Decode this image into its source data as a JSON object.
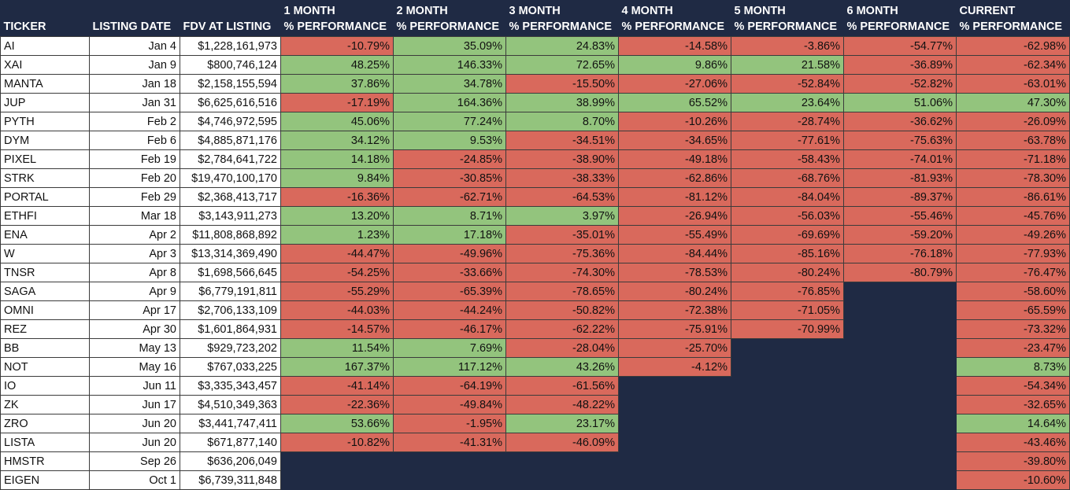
{
  "headers": {
    "ticker": "TICKER",
    "listing_date": "LISTING DATE",
    "fdv": "FDV AT LISTING",
    "perf": [
      {
        "line1": "1 MONTH",
        "line2": "% PERFORMANCE"
      },
      {
        "line1": "2 MONTH",
        "line2": "% PERFORMANCE"
      },
      {
        "line1": "3 MONTH",
        "line2": "% PERFORMANCE"
      },
      {
        "line1": "4 MONTH",
        "line2": "% PERFORMANCE"
      },
      {
        "line1": "5 MONTH",
        "line2": "% PERFORMANCE"
      },
      {
        "line1": "6 MONTH",
        "line2": "% PERFORMANCE"
      },
      {
        "line1": "CURRENT",
        "line2": "% PERFORMANCE"
      }
    ]
  },
  "colors": {
    "positive": "#93c47d",
    "negative": "#d9695c",
    "empty": "#1f2a44"
  },
  "rows": [
    {
      "ticker": "AI",
      "date": "Jan 4",
      "fdv": "$1,228,161,973",
      "perf": [
        "-10.79%",
        "35.09%",
        "24.83%",
        "-14.58%",
        "-3.86%",
        "-54.77%",
        "-62.98%"
      ]
    },
    {
      "ticker": "XAI",
      "date": "Jan 9",
      "fdv": "$800,746,124",
      "perf": [
        "48.25%",
        "146.33%",
        "72.65%",
        "9.86%",
        "21.58%",
        "-36.89%",
        "-62.34%"
      ]
    },
    {
      "ticker": "MANTA",
      "date": "Jan 18",
      "fdv": "$2,158,155,594",
      "perf": [
        "37.86%",
        "34.78%",
        "-15.50%",
        "-27.06%",
        "-52.84%",
        "-52.82%",
        "-63.01%"
      ]
    },
    {
      "ticker": "JUP",
      "date": "Jan 31",
      "fdv": "$6,625,616,516",
      "perf": [
        "-17.19%",
        "164.36%",
        "38.99%",
        "65.52%",
        "23.64%",
        "51.06%",
        "47.30%"
      ]
    },
    {
      "ticker": "PYTH",
      "date": "Feb 2",
      "fdv": "$4,746,972,595",
      "perf": [
        "45.06%",
        "77.24%",
        "8.70%",
        "-10.26%",
        "-28.74%",
        "-36.62%",
        "-26.09%"
      ]
    },
    {
      "ticker": "DYM",
      "date": "Feb 6",
      "fdv": "$4,885,871,176",
      "perf": [
        "34.12%",
        "9.53%",
        "-34.51%",
        "-34.65%",
        "-77.61%",
        "-75.63%",
        "-63.78%"
      ]
    },
    {
      "ticker": "PIXEL",
      "date": "Feb 19",
      "fdv": "$2,784,641,722",
      "perf": [
        "14.18%",
        "-24.85%",
        "-38.90%",
        "-49.18%",
        "-58.43%",
        "-74.01%",
        "-71.18%"
      ]
    },
    {
      "ticker": "STRK",
      "date": "Feb 20",
      "fdv": "$19,470,100,170",
      "perf": [
        "9.84%",
        "-30.85%",
        "-38.33%",
        "-62.86%",
        "-68.76%",
        "-81.93%",
        "-78.30%"
      ]
    },
    {
      "ticker": "PORTAL",
      "date": "Feb 29",
      "fdv": "$2,368,413,717",
      "perf": [
        "-16.36%",
        "-62.71%",
        "-64.53%",
        "-81.12%",
        "-84.04%",
        "-89.37%",
        "-86.61%"
      ]
    },
    {
      "ticker": "ETHFI",
      "date": "Mar 18",
      "fdv": "$3,143,911,273",
      "perf": [
        "13.20%",
        "8.71%",
        "3.97%",
        "-26.94%",
        "-56.03%",
        "-55.46%",
        "-45.76%"
      ]
    },
    {
      "ticker": "ENA",
      "date": "Apr 2",
      "fdv": "$11,808,868,892",
      "perf": [
        "1.23%",
        "17.18%",
        "-35.01%",
        "-55.49%",
        "-69.69%",
        "-59.20%",
        "-49.26%"
      ]
    },
    {
      "ticker": "W",
      "date": "Apr 3",
      "fdv": "$13,314,369,490",
      "perf": [
        "-44.47%",
        "-49.96%",
        "-75.36%",
        "-84.44%",
        "-85.16%",
        "-76.18%",
        "-77.93%"
      ]
    },
    {
      "ticker": "TNSR",
      "date": "Apr 8",
      "fdv": "$1,698,566,645",
      "perf": [
        "-54.25%",
        "-33.66%",
        "-74.30%",
        "-78.53%",
        "-80.24%",
        "-80.79%",
        "-76.47%"
      ]
    },
    {
      "ticker": "SAGA",
      "date": "Apr 9",
      "fdv": "$6,779,191,811",
      "perf": [
        "-55.29%",
        "-65.39%",
        "-78.65%",
        "-80.24%",
        "-76.85%",
        null,
        "-58.60%"
      ]
    },
    {
      "ticker": "OMNI",
      "date": "Apr 17",
      "fdv": "$2,706,133,109",
      "perf": [
        "-44.03%",
        "-44.24%",
        "-50.82%",
        "-72.38%",
        "-71.05%",
        null,
        "-65.59%"
      ]
    },
    {
      "ticker": "REZ",
      "date": "Apr 30",
      "fdv": "$1,601,864,931",
      "perf": [
        "-14.57%",
        "-46.17%",
        "-62.22%",
        "-75.91%",
        "-70.99%",
        null,
        "-73.32%"
      ]
    },
    {
      "ticker": "BB",
      "date": "May 13",
      "fdv": "$929,723,202",
      "perf": [
        "11.54%",
        "7.69%",
        "-28.04%",
        "-25.70%",
        null,
        null,
        "-23.47%"
      ]
    },
    {
      "ticker": "NOT",
      "date": "May 16",
      "fdv": "$767,033,225",
      "perf": [
        "167.37%",
        "117.12%",
        "43.26%",
        "-4.12%",
        null,
        null,
        "8.73%"
      ]
    },
    {
      "ticker": "IO",
      "date": "Jun 11",
      "fdv": "$3,335,343,457",
      "perf": [
        "-41.14%",
        "-64.19%",
        "-61.56%",
        null,
        null,
        null,
        "-54.34%"
      ]
    },
    {
      "ticker": "ZK",
      "date": "Jun 17",
      "fdv": "$4,510,349,363",
      "perf": [
        "-22.36%",
        "-49.84%",
        "-48.22%",
        null,
        null,
        null,
        "-32.65%"
      ]
    },
    {
      "ticker": "ZRO",
      "date": "Jun 20",
      "fdv": "$3,441,747,411",
      "perf": [
        "53.66%",
        "-1.95%",
        "23.17%",
        null,
        null,
        null,
        "14.64%"
      ]
    },
    {
      "ticker": "LISTA",
      "date": "Jun 20",
      "fdv": "$671,877,140",
      "perf": [
        "-10.82%",
        "-41.31%",
        "-46.09%",
        null,
        null,
        null,
        "-43.46%"
      ]
    },
    {
      "ticker": "HMSTR",
      "date": "Sep 26",
      "fdv": "$636,206,049",
      "perf": [
        null,
        null,
        null,
        null,
        null,
        null,
        "-39.80%"
      ]
    },
    {
      "ticker": "EIGEN",
      "date": "Oct 1",
      "fdv": "$6,739,311,848",
      "perf": [
        null,
        null,
        null,
        null,
        null,
        null,
        "-10.60%"
      ]
    }
  ]
}
